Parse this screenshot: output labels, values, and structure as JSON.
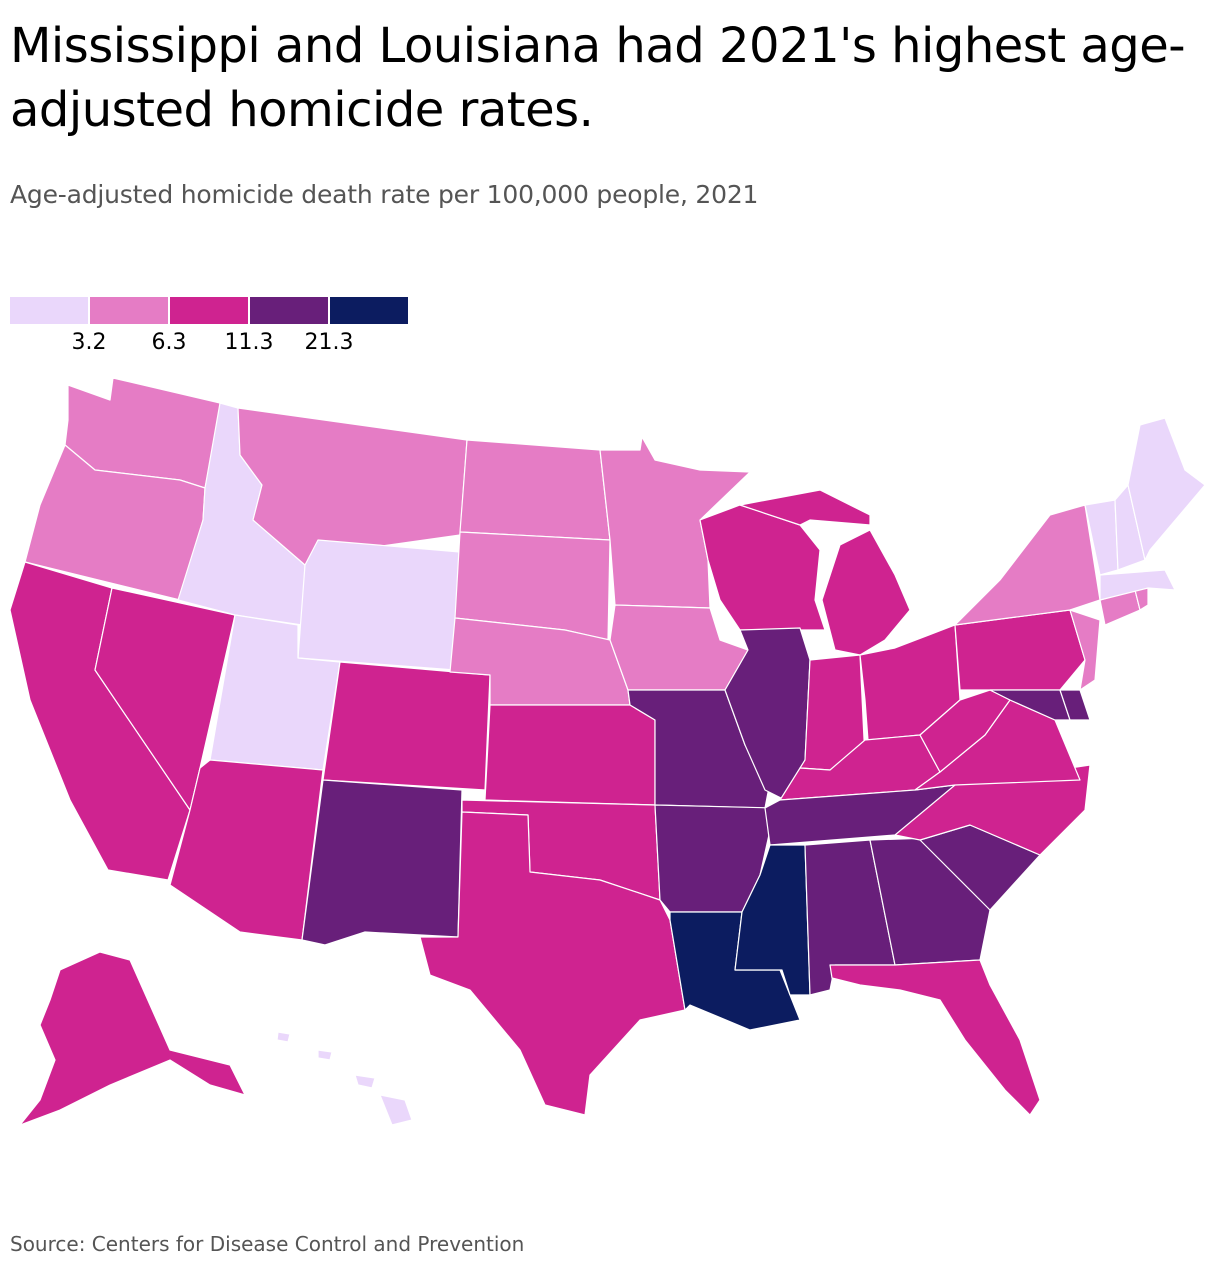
{
  "title": "Mississippi and Louisiana had 2021's highest age-adjusted homicide rates.",
  "subtitle": "Age-adjusted homicide death rate per 100,000 people, 2021",
  "legend": {
    "colors": [
      "#ead7fb",
      "#e57cc5",
      "#cf2390",
      "#681f7a",
      "#0c1c60"
    ],
    "ticks": [
      "3.2",
      "6.3",
      "11.3",
      "21.3"
    ]
  },
  "states": {
    "WA": "#e57cc5",
    "OR": "#e57cc5",
    "CA": "#cf2390",
    "NV": "#cf2390",
    "ID": "#ead7fb",
    "MT": "#e57cc5",
    "WY": "#ead7fb",
    "UT": "#ead7fb",
    "AZ": "#cf2390",
    "CO": "#cf2390",
    "NM": "#681f7a",
    "ND": "#e57cc5",
    "SD": "#e57cc5",
    "NE": "#e57cc5",
    "KS": "#cf2390",
    "OK": "#cf2390",
    "TX": "#cf2390",
    "MN": "#e57cc5",
    "IA": "#e57cc5",
    "MO": "#681f7a",
    "AR": "#681f7a",
    "LA": "#0c1c60",
    "WI": "#cf2390",
    "IL": "#681f7a",
    "MS": "#0c1c60",
    "MI": "#cf2390",
    "IN": "#cf2390",
    "KY": "#cf2390",
    "TN": "#681f7a",
    "AL": "#681f7a",
    "OH": "#cf2390",
    "GA": "#681f7a",
    "FL": "#cf2390",
    "SC": "#681f7a",
    "NC": "#cf2390",
    "VA": "#cf2390",
    "WV": "#cf2390",
    "PA": "#cf2390",
    "NY": "#e57cc5",
    "NJ": "#e57cc5",
    "MD": "#681f7a",
    "DE": "#681f7a",
    "CT": "#e57cc5",
    "RI": "#e57cc5",
    "MA": "#ead7fb",
    "VT": "#ead7fb",
    "NH": "#ead7fb",
    "ME": "#ead7fb",
    "AK": "#cf2390",
    "HI": "#ead7fb"
  },
  "source": "Source: Centers for Disease Control and Prevention"
}
